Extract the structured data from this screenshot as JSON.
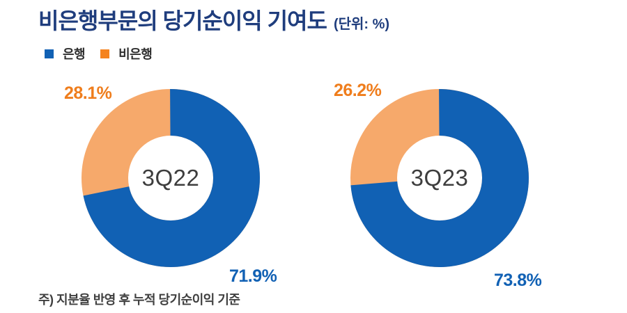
{
  "title": {
    "text": "비은행부문의 당기순이익 기여도",
    "unit": "(단위: %)"
  },
  "legend": [
    {
      "label": "은행",
      "color": "#1161b4"
    },
    {
      "label": "비은행",
      "color": "#f5831e"
    }
  ],
  "charts": [
    {
      "center_label": "3Q22",
      "bank_value_label": "71.9%",
      "nonbank_value_label": "28.1%"
    },
    {
      "center_label": "3Q23",
      "bank_value_label": "73.8%",
      "nonbank_value_label": "26.2%"
    }
  ],
  "note": "주) 지분율 반영 후 누적 당기순이익 기준",
  "colors": {
    "title_navy": "#1f3d7d",
    "bank_blue": "#1161b4",
    "nonbank_slice_orange": "#f6a96b",
    "nonbank_label_orange": "#ef7d1c",
    "legend_orange": "#f5831e",
    "center_text_gray": "#3d3d3d"
  },
  "chart_data": [
    {
      "type": "pie",
      "style": "donut",
      "center_label": "3Q22",
      "categories": [
        "은행",
        "비은행"
      ],
      "values": [
        71.9,
        28.1
      ],
      "unit": "%",
      "slice_colors": [
        "#1161b4",
        "#f6a96b"
      ],
      "start": "12-oclock",
      "direction": "clockwise",
      "legend_position": "top-left"
    },
    {
      "type": "pie",
      "style": "donut",
      "center_label": "3Q23",
      "categories": [
        "은행",
        "비은행"
      ],
      "values": [
        73.8,
        26.2
      ],
      "unit": "%",
      "slice_colors": [
        "#1161b4",
        "#f6a96b"
      ],
      "start": "12-oclock",
      "direction": "clockwise",
      "legend_position": "top-left"
    }
  ]
}
